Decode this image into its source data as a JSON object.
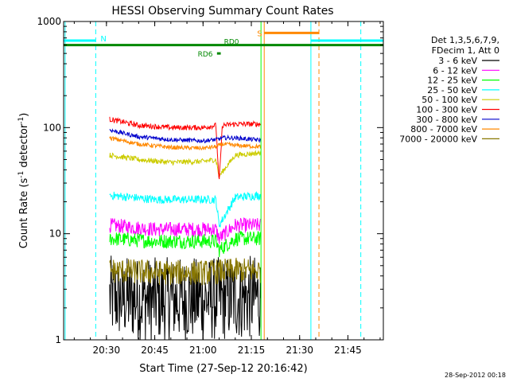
{
  "chart_data": {
    "type": "line",
    "title": "HESSI Observing Summary Count Rates",
    "xlabel": "Start Time (27-Sep-12 20:16:42)",
    "ylabel_main": "Count Rate (s",
    "ylabel_sup1": "-1",
    "ylabel_mid": " detector",
    "ylabel_sup2": "-1",
    "ylabel_end": ")",
    "y_scale": "log",
    "ylim": [
      1,
      1000
    ],
    "xlim": [
      "20:16:42",
      "21:56:00"
    ],
    "x_ticks": [
      "20:30",
      "20:45",
      "21:00",
      "21:15",
      "21:30",
      "21:45"
    ],
    "y_ticks": [
      "1",
      "10",
      "100",
      "1000"
    ],
    "timestamp": "28-Sep-2012 00:18",
    "legend": {
      "placement": "right",
      "header": [
        "Det 1,3,5,6,7,9,",
        "FDecim 1, Att 0"
      ],
      "entries": [
        {
          "label": "3 - 6 keV",
          "color": "#000000"
        },
        {
          "label": "6 - 12 keV",
          "color": "#ff00ff"
        },
        {
          "label": "12 - 25 keV",
          "color": "#00ff00"
        },
        {
          "label": "25 - 50 keV",
          "color": "#00ffff"
        },
        {
          "label": "50 - 100 keV",
          "color": "#cccc00"
        },
        {
          "label": "100 - 300 keV",
          "color": "#ff0000"
        },
        {
          "label": "300 - 800 keV",
          "color": "#0000cc"
        },
        {
          "label": "800 - 7000 keV",
          "color": "#ff8800"
        },
        {
          "label": "7000 - 20000 keV",
          "color": "#887700"
        }
      ]
    },
    "flags": [
      {
        "label": "N",
        "color": "#00ffff",
        "level": 660
      },
      {
        "label": "S",
        "color": "#ff8800",
        "level": 780
      },
      {
        "label": "RD0",
        "color": "#008800",
        "level": 600
      },
      {
        "label": "RD6",
        "color": "#008800",
        "level": 500
      }
    ],
    "series": [
      {
        "name": "3 - 6 keV",
        "color": "#000000",
        "x": [
          "20:31",
          "20:45",
          "21:00",
          "21:14",
          "21:18"
        ],
        "values": [
          2.5,
          2.4,
          2.4,
          2.5,
          2.5
        ],
        "noise": 0.4
      },
      {
        "name": "6 - 12 keV",
        "color": "#ff00ff",
        "x": [
          "20:31",
          "20:45",
          "21:00",
          "21:04",
          "21:05",
          "21:10",
          "21:18"
        ],
        "values": [
          12,
          11,
          11,
          11,
          9,
          12,
          12
        ],
        "noise": 0.07
      },
      {
        "name": "12 - 25 keV",
        "color": "#00ff00",
        "x": [
          "20:31",
          "20:45",
          "21:00",
          "21:04",
          "21:05",
          "21:10",
          "21:18"
        ],
        "values": [
          9,
          8.5,
          8.5,
          8.5,
          7,
          9,
          9
        ],
        "noise": 0.07
      },
      {
        "name": "25 - 50 keV",
        "color": "#00ffff",
        "x": [
          "20:31",
          "20:45",
          "21:00",
          "21:04",
          "21:05",
          "21:10",
          "21:18"
        ],
        "values": [
          23,
          21,
          21,
          21,
          12,
          22,
          23
        ],
        "noise": 0.04
      },
      {
        "name": "50 - 100 keV",
        "color": "#cccc00",
        "x": [
          "20:31",
          "20:40",
          "20:50",
          "21:00",
          "21:04",
          "21:05",
          "21:10",
          "21:18"
        ],
        "values": [
          55,
          50,
          47,
          48,
          50,
          35,
          55,
          58
        ],
        "noise": 0.025
      },
      {
        "name": "100 - 300 keV",
        "color": "#ff0000",
        "x": [
          "20:31",
          "20:40",
          "20:50",
          "21:00",
          "21:04",
          "21:05",
          "21:06",
          "21:10",
          "21:18"
        ],
        "values": [
          120,
          105,
          100,
          100,
          105,
          30,
          105,
          108,
          108
        ],
        "noise": 0.025
      },
      {
        "name": "300 - 800 keV",
        "color": "#0000cc",
        "x": [
          "20:31",
          "20:40",
          "20:50",
          "21:00",
          "21:04",
          "21:06",
          "21:10",
          "21:18"
        ],
        "values": [
          95,
          82,
          77,
          75,
          77,
          80,
          80,
          76
        ],
        "noise": 0.02
      },
      {
        "name": "800 - 7000 keV",
        "color": "#ff8800",
        "x": [
          "20:31",
          "20:40",
          "20:50",
          "21:00",
          "21:04",
          "21:06",
          "21:10",
          "21:18"
        ],
        "values": [
          80,
          70,
          65,
          64,
          66,
          70,
          68,
          66
        ],
        "noise": 0.02
      },
      {
        "name": "7000 - 20000 keV",
        "color": "#887700",
        "x": [
          "20:31",
          "20:45",
          "21:00",
          "21:10",
          "21:18"
        ],
        "values": [
          4.5,
          4.3,
          4.3,
          4.5,
          4.5
        ],
        "noise": 0.12
      }
    ]
  }
}
